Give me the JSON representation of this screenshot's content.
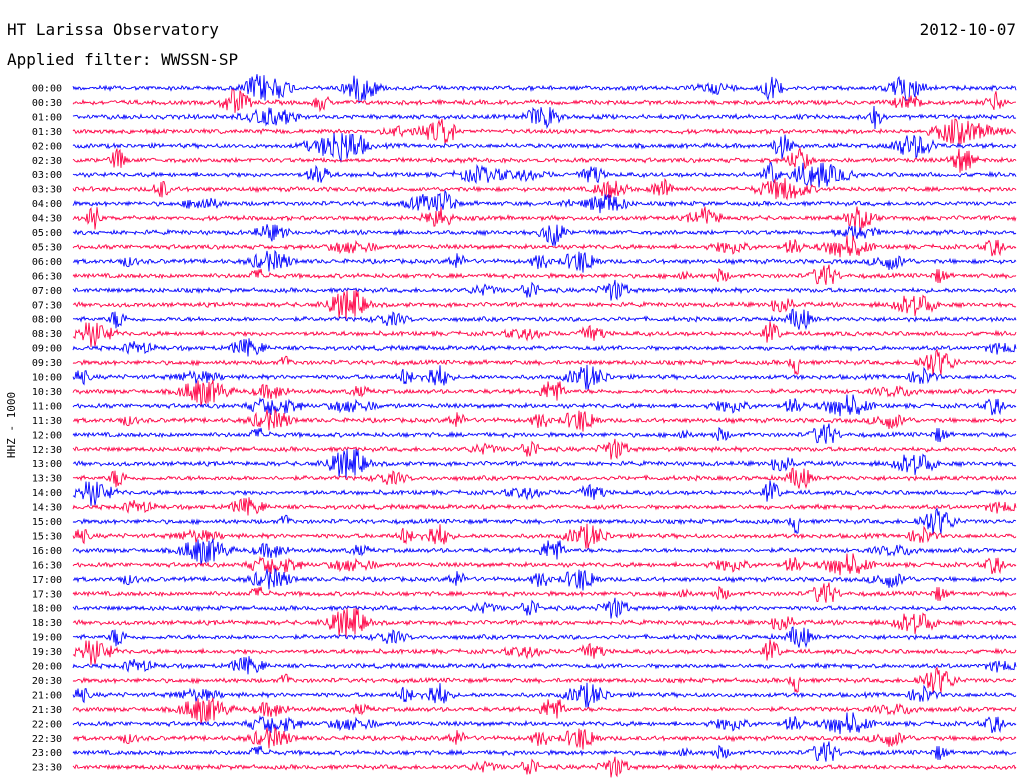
{
  "header": {
    "title": "HT Larissa Observatory",
    "date": "2012-10-07",
    "filter": "Applied filter: WWSSN-SP"
  },
  "chart_data": {
    "type": "line",
    "title": "HT Larissa Observatory",
    "ylabel": "HHZ - 1000",
    "categories": [
      "00:00",
      "00:30",
      "01:00",
      "01:30",
      "02:00",
      "02:30",
      "03:00",
      "03:30",
      "04:00",
      "04:30",
      "05:00",
      "05:30",
      "06:00",
      "06:30",
      "07:00",
      "07:30",
      "08:00",
      "08:30",
      "09:00",
      "09:30",
      "10:00",
      "10:30",
      "11:00",
      "11:30",
      "12:00",
      "12:30",
      "13:00",
      "13:30",
      "14:00",
      "14:30",
      "15:00",
      "15:30",
      "16:00",
      "16:30",
      "17:00",
      "17:30",
      "18:00",
      "18:30",
      "19:00",
      "19:30",
      "20:00",
      "20:30",
      "21:00",
      "21:30",
      "22:00",
      "22:30",
      "23:00",
      "23:30"
    ],
    "series_colors": [
      "#0000ff",
      "#ff0044"
    ],
    "grid": false,
    "legend": "none"
  }
}
